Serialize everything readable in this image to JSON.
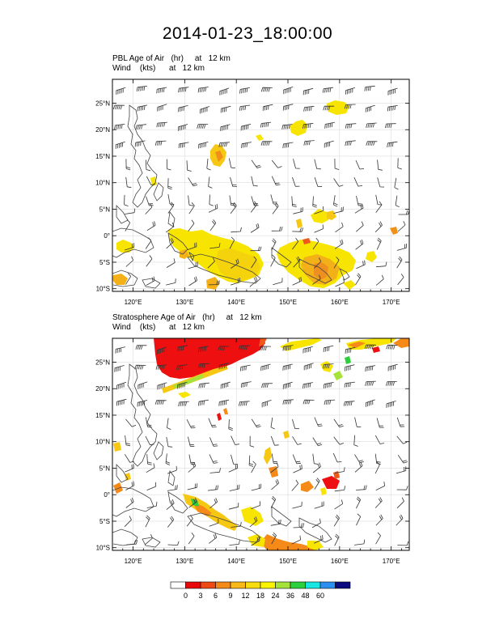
{
  "title": "2014-01-23_18:00:00",
  "panels": [
    {
      "id": "pbl",
      "line1": "PBL Age of Air   (hr)     at   12 km",
      "line2": "Wind    (kts)      at   12 km"
    },
    {
      "id": "strat",
      "line1": "Stratosphere Age of Air   (hr)     at   12 km",
      "line2": "Wind    (kts)      at   12 km"
    }
  ],
  "lat_labels": [
    "25°N",
    "20°N",
    "15°N",
    "10°N",
    "5°N",
    "0°",
    "5°S",
    "10°S"
  ],
  "lon_labels": [
    "120°E",
    "130°E",
    "140°E",
    "150°E",
    "160°E",
    "170°E"
  ],
  "colorbar": {
    "colors": [
      "#ffffff",
      "#e8080a",
      "#f04a14",
      "#f58a18",
      "#f7b818",
      "#f6dc10",
      "#fbf400",
      "#a6e33a",
      "#2ccf3c",
      "#18e6e0",
      "#2a8ff0",
      "#0a0a80"
    ],
    "labels": [
      "0",
      "3",
      "6",
      "9",
      "12",
      "18",
      "24",
      "36",
      "48",
      "60"
    ]
  }
}
